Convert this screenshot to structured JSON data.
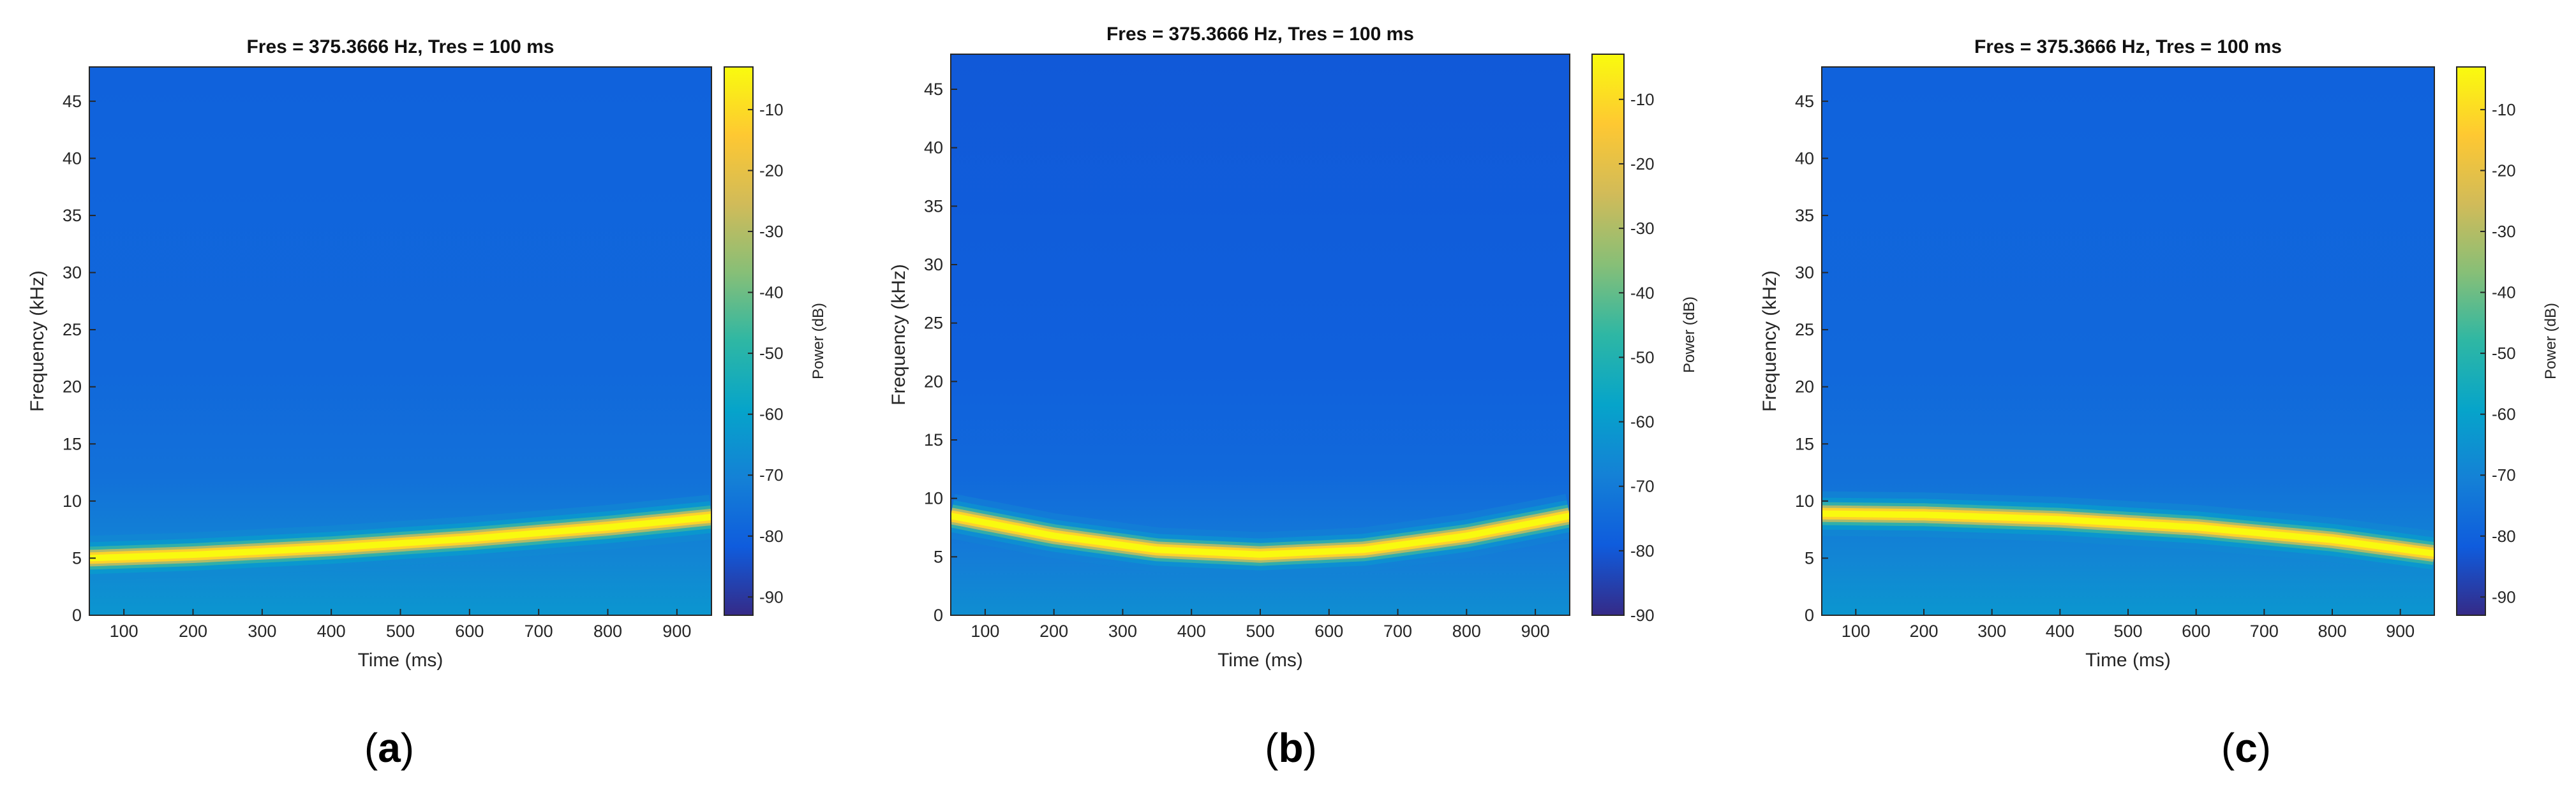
{
  "figure": {
    "panels": [
      "a",
      "b",
      "c"
    ]
  },
  "colors": {
    "background": "#ffffff",
    "axis": "#262626",
    "text": "#262626",
    "parula": [
      "#352A87",
      "#0F5CDD",
      "#1481D6",
      "#06A4CA",
      "#2EB7A4",
      "#87BF77",
      "#D1BB59",
      "#FEC832",
      "#F9FB0E"
    ]
  },
  "chart_data": [
    {
      "panel_label": "(a)",
      "label_letter": "a",
      "type": "heatmap",
      "title": "Fres = 375.3666 Hz, Tres = 100 ms",
      "xlabel": "Time (ms)",
      "ylabel": "Frequency (kHz)",
      "xlim": [
        50,
        950
      ],
      "ylim": [
        0,
        48
      ],
      "xticks": [
        100,
        200,
        300,
        400,
        500,
        600,
        700,
        800,
        900
      ],
      "yticks": [
        0,
        5,
        10,
        15,
        20,
        25,
        30,
        35,
        40,
        45
      ],
      "colorbar": {
        "label": "Power (dB)",
        "range": [
          -93,
          -3
        ],
        "ticks": [
          -10,
          -20,
          -30,
          -40,
          -50,
          -60,
          -70,
          -80,
          -90
        ]
      },
      "background_power_db": -78,
      "ridge_power_db": -5,
      "ridge": {
        "time_ms": [
          50,
          200,
          400,
          600,
          800,
          950
        ],
        "freq_khz": [
          5.0,
          5.3,
          5.9,
          6.7,
          7.7,
          8.6
        ]
      }
    },
    {
      "panel_label": "(b)",
      "label_letter": "b",
      "type": "heatmap",
      "title": "Fres = 375.3666 Hz, Tres = 100 ms",
      "xlabel": "Time (ms)",
      "ylabel": "Frequency (kHz)",
      "xlim": [
        50,
        950
      ],
      "ylim": [
        0,
        48
      ],
      "xticks": [
        100,
        200,
        300,
        400,
        500,
        600,
        700,
        800,
        900
      ],
      "yticks": [
        0,
        5,
        10,
        15,
        20,
        25,
        30,
        35,
        40,
        45
      ],
      "colorbar": {
        "label": "Power (dB)",
        "range": [
          -90,
          -3
        ],
        "ticks": [
          -10,
          -20,
          -30,
          -40,
          -50,
          -60,
          -70,
          -80,
          -90
        ]
      },
      "background_power_db": -78,
      "ridge_power_db": -5,
      "ridge": {
        "time_ms": [
          50,
          200,
          350,
          500,
          650,
          800,
          950
        ],
        "freq_khz": [
          8.5,
          6.8,
          5.6,
          5.2,
          5.6,
          6.8,
          8.5
        ]
      }
    },
    {
      "panel_label": "(c)",
      "label_letter": "c",
      "type": "heatmap",
      "title": "Fres = 375.3666 Hz, Tres = 100 ms",
      "xlabel": "Time (ms)",
      "ylabel": "Frequency (kHz)",
      "xlim": [
        50,
        950
      ],
      "ylim": [
        0,
        48
      ],
      "xticks": [
        100,
        200,
        300,
        400,
        500,
        600,
        700,
        800,
        900
      ],
      "yticks": [
        0,
        5,
        10,
        15,
        20,
        25,
        30,
        35,
        40,
        45
      ],
      "colorbar": {
        "label": "Power (dB)",
        "range": [
          -93,
          -3
        ],
        "ticks": [
          -10,
          -20,
          -30,
          -40,
          -50,
          -60,
          -70,
          -80,
          -90
        ]
      },
      "background_power_db": -78,
      "ridge_power_db": -5,
      "ridge": {
        "time_ms": [
          50,
          200,
          400,
          600,
          800,
          950
        ],
        "freq_khz": [
          8.9,
          8.8,
          8.4,
          7.7,
          6.6,
          5.4
        ]
      }
    }
  ]
}
